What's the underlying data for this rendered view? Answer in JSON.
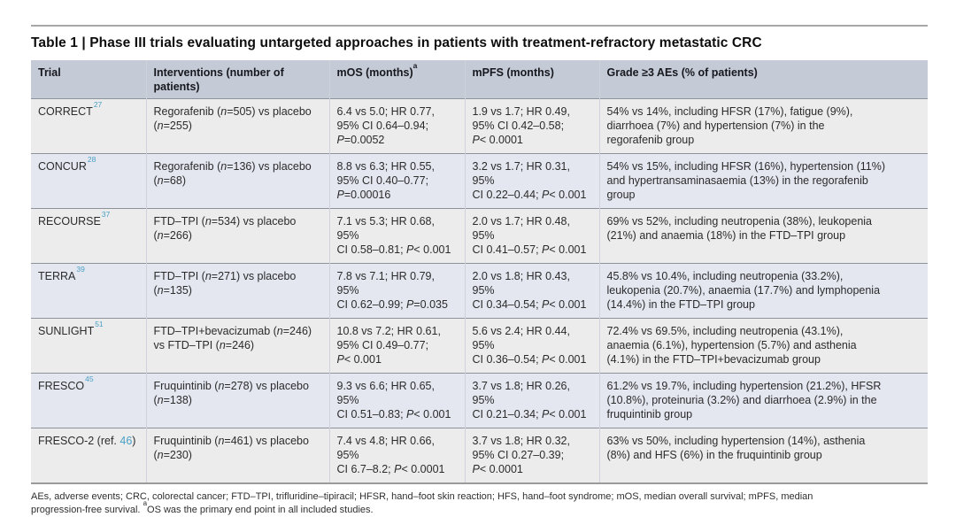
{
  "title": "Table 1 | Phase III trials evaluating untargeted approaches in patients with treatment-refractory metastatic CRC",
  "colors": {
    "header_bg": "#c5cad7",
    "row_odd_bg": "#ececec",
    "row_even_bg": "#e4e7f0",
    "reference_blue": "#4aa0c5",
    "rule_gray": "#a7a7a7"
  },
  "table": {
    "headers": {
      "trial": "Trial",
      "interventions": "Interventions (number of\npatients)",
      "mos": "mOS (months)",
      "mos_sup": "a",
      "mpfs": "mPFS (months)",
      "aes": "Grade ≥3 AEs (% of patients)"
    },
    "rows": [
      {
        "trial": "CORRECT",
        "ref": "27",
        "interventions": "Regorafenib (n=505) vs placebo\n(n=255)",
        "mos": "6.4 vs 5.0; HR 0.77,\n95% CI 0.64–0.94;\nP=0.0052",
        "mpfs": "1.9 vs 1.7; HR 0.49,\n95% CI 0.42–0.58;\nP< 0.0001",
        "aes": "54% vs 14%, including HFSR (17%), fatigue (9%),\ndiarrhoea (7%) and hypertension (7%) in the\nregorafenib group"
      },
      {
        "trial": "CONCUR",
        "ref": "28",
        "interventions": "Regorafenib (n=136) vs placebo\n(n=68)",
        "mos": "8.8 vs 6.3; HR 0.55,\n95% CI 0.40–0.77;\nP=0.00016",
        "mpfs": "3.2 vs 1.7; HR 0.31, 95%\nCI 0.22–0.44; P< 0.001",
        "aes": "54% vs 15%, including HFSR (16%), hypertension (11%)\nand hypertransaminasaemia (13%) in the regorafenib\ngroup"
      },
      {
        "trial": "RECOURSE",
        "ref": "37",
        "interventions": "FTD–TPI (n=534) vs placebo\n(n=266)",
        "mos": "7.1 vs 5.3; HR 0.68, 95%\nCI 0.58–0.81; P< 0.001",
        "mpfs": "2.0 vs 1.7; HR 0.48, 95%\nCI 0.41–0.57; P< 0.001",
        "aes": "69% vs 52%, including neutropenia (38%), leukopenia\n(21%) and anaemia (18%) in the FTD–TPI group"
      },
      {
        "trial": "TERRA",
        "ref": "39",
        "interventions": "FTD–TPI (n=271) vs placebo\n(n=135)",
        "mos": "7.8 vs 7.1; HR 0.79, 95%\nCI 0.62–0.99; P=0.035",
        "mpfs": "2.0 vs 1.8; HR 0.43, 95%\nCI 0.34–0.54; P< 0.001",
        "aes": "45.8% vs 10.4%, including neutropenia (33.2%),\nleukopenia (20.7%), anaemia (17.7%) and lymphopenia\n(14.4%) in the FTD–TPI group"
      },
      {
        "trial": "SUNLIGHT",
        "ref": "51",
        "interventions": "FTD–TPI+bevacizumab (n=246)\nvs FTD–TPI (n=246)",
        "mos": "10.8 vs 7.2; HR 0.61,\n95% CI 0.49–0.77;\nP< 0.001",
        "mpfs": "5.6 vs 2.4; HR 0.44, 95%\nCI 0.36–0.54; P< 0.001",
        "aes": "72.4% vs 69.5%, including neutropenia (43.1%),\nanaemia (6.1%), hypertension (5.7%) and asthenia\n(4.1%) in the FTD–TPI+bevacizumab group"
      },
      {
        "trial": "FRESCO",
        "ref": "45",
        "interventions": "Fruquintinib (n=278) vs placebo\n(n=138)",
        "mos": "9.3 vs 6.6; HR 0.65, 95%\nCI 0.51–0.83; P< 0.001",
        "mpfs": "3.7 vs 1.8; HR 0.26, 95%\nCI 0.21–0.34; P< 0.001",
        "aes": "61.2% vs 19.7%, including hypertension (21.2%), HFSR\n(10.8%), proteinuria (3.2%) and diarrhoea (2.9%) in the\nfruquintinib group"
      },
      {
        "trial": "FRESCO-2 (ref. ",
        "ref": "46",
        "trial_suffix": ")",
        "interventions": "Fruquintinib (n=461) vs placebo\n(n=230)",
        "mos": "7.4 vs 4.8; HR 0.66, 95%\nCI 6.7–8.2; P< 0.0001",
        "mpfs": "3.7 vs 1.8; HR 0.32,\n95% CI 0.27–0.39;\nP< 0.0001",
        "aes": "63% vs 50%, including hypertension (14%), asthenia\n(8%) and HFS (6%) in the fruquintinib group"
      }
    ]
  },
  "footnote": {
    "part1": "AEs, adverse events; CRC, colorectal cancer; FTD–TPI, trifluridine–tipiracil; HFSR, hand–foot skin reaction; HFS, hand–foot syndrome; mOS, median overall survival; mPFS, median\nprogression-free survival. ",
    "sup": "a",
    "part2": "OS was the primary end point in all included studies."
  }
}
